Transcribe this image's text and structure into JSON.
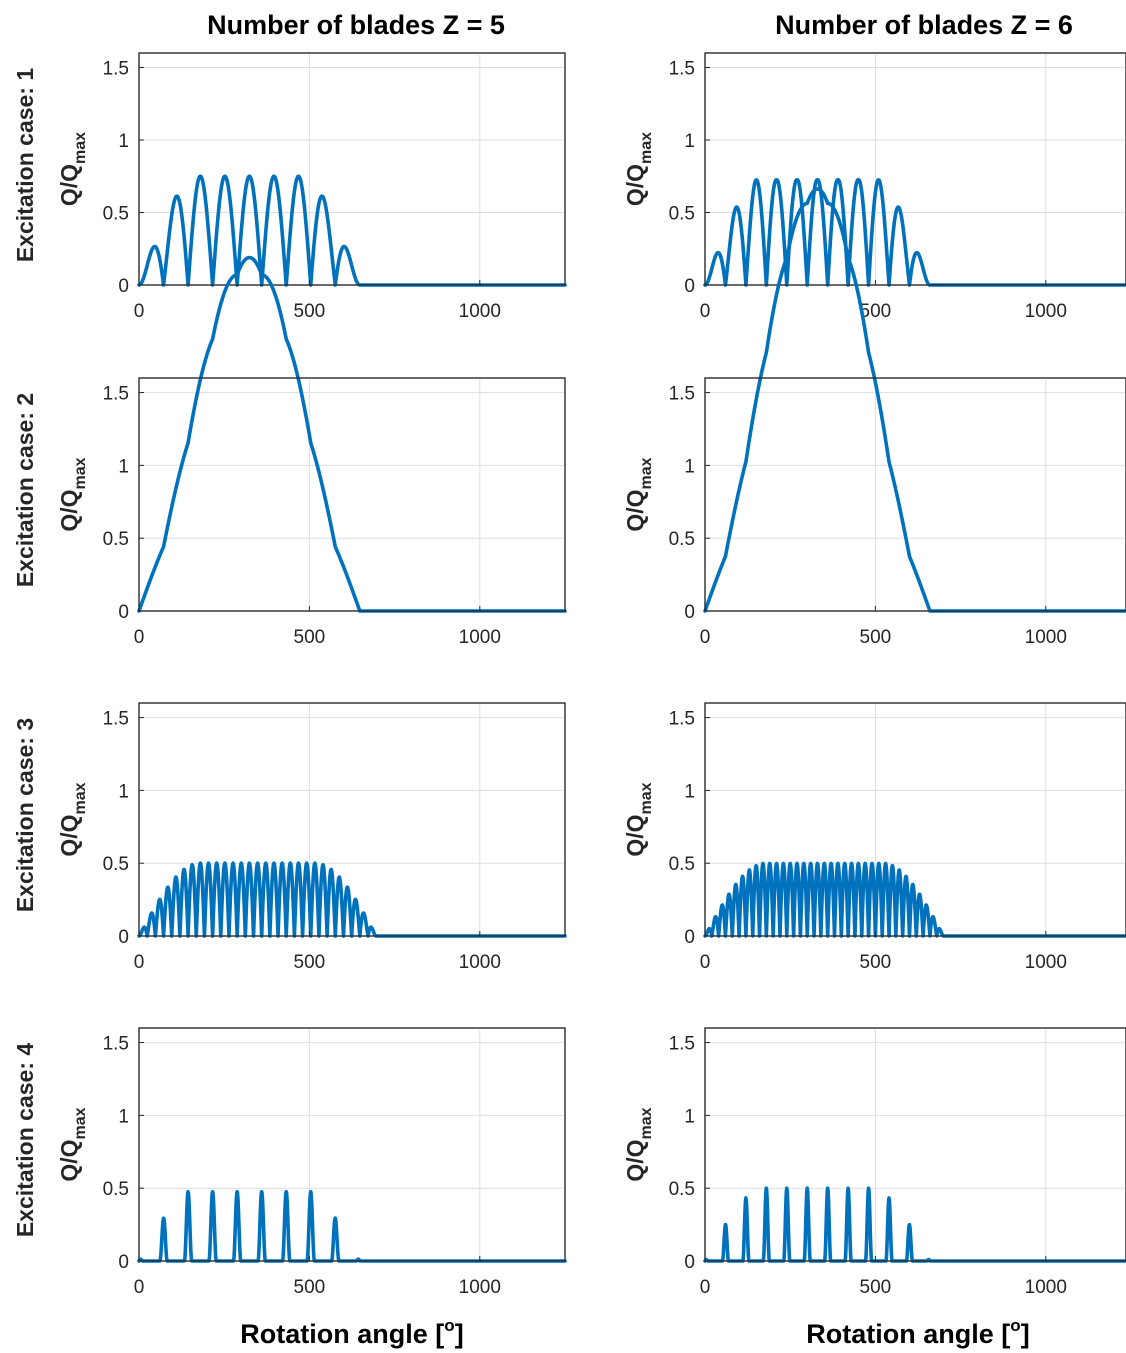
{
  "figure": {
    "column_titles": [
      "Number of blades Z = 5",
      "Number of blades Z = 6"
    ],
    "row_labels": [
      "Excitation case: 1",
      "Excitation case: 2",
      "Excitation case: 3",
      "Excitation case: 4"
    ],
    "ylabel": {
      "base": "Q/Q",
      "sub": "max"
    },
    "xlabel": {
      "base": "Rotation angle [",
      "sup": "o",
      "close": "]"
    }
  },
  "chart_data": [
    {
      "type": "line",
      "row": 0,
      "col": 0,
      "blades": 5,
      "case": 1,
      "shape": "lobes",
      "blade_period_deg": 72,
      "n_blades": 5,
      "peak": 0.75,
      "base": 0,
      "xlim": [
        0,
        1250
      ],
      "ylim": [
        0,
        1.6
      ],
      "xticks": [
        0,
        500,
        1000
      ],
      "yticks": [
        0,
        0.5,
        1,
        1.5
      ],
      "ytick_labels": [
        "0",
        "0.5",
        "1",
        "1.5"
      ],
      "grid": true,
      "series": [
        {
          "color": "#0072BD"
        }
      ]
    },
    {
      "type": "line",
      "row": 0,
      "col": 1,
      "blades": 6,
      "case": 1,
      "shape": "lobes",
      "blade_period_deg": 60,
      "n_blades": 6,
      "peak": 0.75,
      "base": 0,
      "xlim": [
        0,
        1250
      ],
      "ylim": [
        0,
        1.6
      ],
      "xticks": [
        0,
        500,
        1000
      ],
      "yticks": [
        0,
        0.5,
        1,
        1.5
      ],
      "ytick_labels": [
        "0",
        "0.5",
        "1",
        "1.5"
      ],
      "grid": true,
      "series": [
        {
          "color": "#0072BD"
        }
      ]
    },
    {
      "type": "line",
      "row": 1,
      "col": 0,
      "blades": 5,
      "case": 2,
      "shape": "sum",
      "blade_period_deg": 72,
      "n_blades": 5,
      "peak": 0.75,
      "base": 0,
      "xlim": [
        0,
        1250
      ],
      "ylim": [
        0,
        1.6
      ],
      "xticks": [
        0,
        500,
        1000
      ],
      "yticks": [
        0,
        0.5,
        1,
        1.5
      ],
      "ytick_labels": [
        "0",
        "0.5",
        "1",
        "1.5"
      ],
      "grid": true,
      "series": [
        {
          "color": "#0072BD"
        }
      ]
    },
    {
      "type": "line",
      "row": 1,
      "col": 1,
      "blades": 6,
      "case": 2,
      "shape": "sum",
      "blade_period_deg": 60,
      "n_blades": 6,
      "peak": 0.75,
      "base": 0,
      "xlim": [
        0,
        1250
      ],
      "ylim": [
        0,
        1.6
      ],
      "xticks": [
        0,
        500,
        1000
      ],
      "yticks": [
        0,
        0.5,
        1,
        1.5
      ],
      "ytick_labels": [
        "0",
        "0.5",
        "1",
        "1.5"
      ],
      "grid": true,
      "series": [
        {
          "color": "#0072BD"
        }
      ]
    },
    {
      "type": "line",
      "row": 2,
      "col": 0,
      "blades": 5,
      "case": 3,
      "shape": "lobes",
      "blade_period_deg": 24,
      "n_blades": 15,
      "peak": 0.5,
      "base": 0,
      "xlim": [
        0,
        1250
      ],
      "ylim": [
        0,
        1.6
      ],
      "xticks": [
        0,
        500,
        1000
      ],
      "yticks": [
        0,
        0.5,
        1,
        1.5
      ],
      "ytick_labels": [
        "0",
        "0.5",
        "1",
        "1.5"
      ],
      "grid": true,
      "series": [
        {
          "color": "#0072BD"
        }
      ]
    },
    {
      "type": "line",
      "row": 2,
      "col": 1,
      "blades": 6,
      "case": 3,
      "shape": "lobes",
      "blade_period_deg": 20,
      "n_blades": 18,
      "peak": 0.5,
      "base": 0,
      "xlim": [
        0,
        1250
      ],
      "ylim": [
        0,
        1.6
      ],
      "xticks": [
        0,
        500,
        1000
      ],
      "yticks": [
        0,
        0.5,
        1,
        1.5
      ],
      "ytick_labels": [
        "0",
        "0.5",
        "1",
        "1.5"
      ],
      "grid": true,
      "series": [
        {
          "color": "#0072BD"
        }
      ]
    },
    {
      "type": "line",
      "row": 3,
      "col": 0,
      "blades": 5,
      "case": 4,
      "shape": "pulses",
      "blade_period_deg": 72,
      "n_blades": 5,
      "peak": 0.5,
      "base": 0,
      "xlim": [
        0,
        1250
      ],
      "ylim": [
        0,
        1.6
      ],
      "xticks": [
        0,
        500,
        1000
      ],
      "yticks": [
        0,
        0.5,
        1,
        1.5
      ],
      "ytick_labels": [
        "0",
        "0.5",
        "1",
        "1.5"
      ],
      "grid": true,
      "series": [
        {
          "color": "#0072BD"
        }
      ]
    },
    {
      "type": "line",
      "row": 3,
      "col": 1,
      "blades": 6,
      "case": 4,
      "shape": "pulses",
      "blade_period_deg": 60,
      "n_blades": 6,
      "peak": 0.5,
      "base": 0,
      "xlim": [
        0,
        1250
      ],
      "ylim": [
        0,
        1.6
      ],
      "xticks": [
        0,
        500,
        1000
      ],
      "yticks": [
        0,
        0.5,
        1,
        1.5
      ],
      "ytick_labels": [
        "0",
        "0.5",
        "1",
        "1.5"
      ],
      "grid": true,
      "series": [
        {
          "color": "#0072BD"
        }
      ]
    }
  ]
}
